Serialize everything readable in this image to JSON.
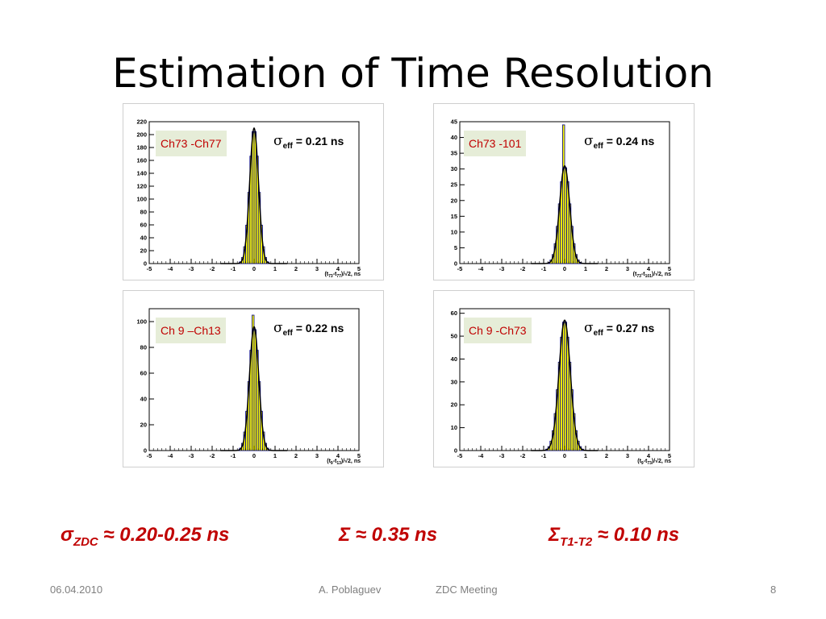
{
  "slide": {
    "title": "Estimation of Time Resolution",
    "summary": [
      {
        "sym": "σ",
        "sub": "ZDC",
        "text": " ≈ 0.20-0.25 ns"
      },
      {
        "sym": "Σ",
        "sub": "",
        "text": " ≈ 0.35 ns"
      },
      {
        "sym": "Σ",
        "sub": "T1-T2",
        "text": " ≈ 0.10 ns"
      }
    ],
    "footer": {
      "date": "06.04.2010",
      "author": "A. Poblaguev",
      "meeting": "ZDC Meeting",
      "page": "8"
    }
  },
  "colors": {
    "fill": "#ffff00",
    "hist_line": "#00008b",
    "fit_line": "#000000",
    "label_text": "#c00000",
    "label_bg": "#e6edd8"
  },
  "chart_data": [
    {
      "type": "bar",
      "label": "Ch73 -Ch77",
      "sigma_sym": "σ",
      "sigma_sub": "eff",
      "sigma_value": " = 0.21 ns",
      "xlabel": "(t",
      "xlabel_sub1": "73",
      "xlabel_mid": "-t",
      "xlabel_sub2": "77",
      "xlabel_tail": ")/√2,  ns",
      "xlim": [
        -5,
        5
      ],
      "ylim": [
        0,
        220
      ],
      "xticks": [
        "-5",
        "-4",
        "-3",
        "-2",
        "-1",
        "0",
        "1",
        "2",
        "3",
        "4",
        "5"
      ],
      "yticks": [
        "0",
        "20",
        "40",
        "60",
        "80",
        "100",
        "120",
        "140",
        "160",
        "180",
        "200",
        "220"
      ],
      "peak": 210,
      "sigma": 0.21
    },
    {
      "type": "bar",
      "label": "Ch73 -101",
      "sigma_sym": "σ",
      "sigma_sub": "eff",
      "sigma_value": " = 0.24 ns",
      "xlabel": "(t",
      "xlabel_sub1": "73",
      "xlabel_mid": "-t",
      "xlabel_sub2": "101",
      "xlabel_tail": ")/√2,  ns",
      "xlim": [
        -5,
        5
      ],
      "ylim": [
        0,
        45
      ],
      "xticks": [
        "-5",
        "-4",
        "-3",
        "-2",
        "-1",
        "0",
        "1",
        "2",
        "3",
        "4",
        "5"
      ],
      "yticks": [
        "0",
        "5",
        "10",
        "15",
        "20",
        "25",
        "30",
        "35",
        "40",
        "45"
      ],
      "peak": 31,
      "sigma": 0.24,
      "spike": 44
    },
    {
      "type": "bar",
      "label": "Ch 9 –Ch13",
      "sigma_sym": "σ",
      "sigma_sub": "eff",
      "sigma_value": " = 0.22 ns",
      "xlabel": "(t",
      "xlabel_sub1": "9",
      "xlabel_mid": "-t",
      "xlabel_sub2": "13",
      "xlabel_tail": ")/√2,  ns",
      "xlim": [
        -5,
        5
      ],
      "ylim": [
        0,
        110
      ],
      "xticks": [
        "-5",
        "-4",
        "-3",
        "-2",
        "-1",
        "0",
        "1",
        "2",
        "3",
        "4",
        "5"
      ],
      "yticks": [
        "0",
        "20",
        "40",
        "60",
        "80",
        "100"
      ],
      "peak": 96,
      "sigma": 0.22,
      "spike": 105
    },
    {
      "type": "bar",
      "label": "Ch 9 -Ch73",
      "sigma_sym": "σ",
      "sigma_sub": "eff",
      "sigma_value": " = 0.27 ns",
      "xlabel": "(t",
      "xlabel_sub1": "9",
      "xlabel_mid": "-t",
      "xlabel_sub2": "73",
      "xlabel_tail": ")/√2,  ns",
      "xlim": [
        -5,
        5
      ],
      "ylim": [
        0,
        62
      ],
      "xticks": [
        "-5",
        "-4",
        "-3",
        "-2",
        "-1",
        "0",
        "1",
        "2",
        "3",
        "4",
        "5"
      ],
      "yticks": [
        "0",
        "10",
        "20",
        "30",
        "40",
        "50",
        "60"
      ],
      "peak": 57,
      "sigma": 0.27
    }
  ]
}
